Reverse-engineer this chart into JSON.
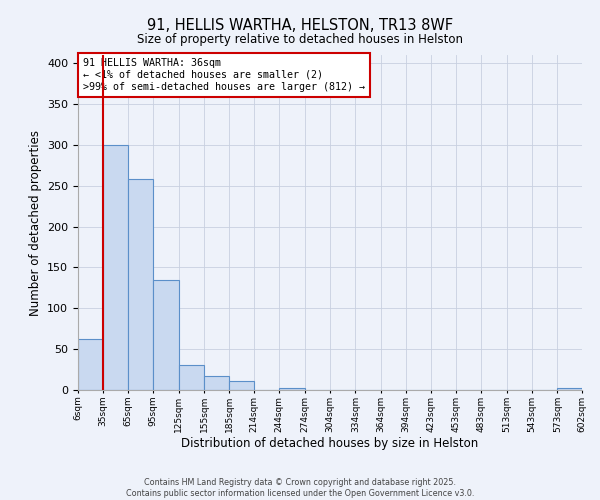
{
  "title": "91, HELLIS WARTHA, HELSTON, TR13 8WF",
  "subtitle": "Size of property relative to detached houses in Helston",
  "xlabel": "Distribution of detached houses by size in Helston",
  "ylabel": "Number of detached properties",
  "bin_labels": [
    "6sqm",
    "35sqm",
    "65sqm",
    "95sqm",
    "125sqm",
    "155sqm",
    "185sqm",
    "214sqm",
    "244sqm",
    "274sqm",
    "304sqm",
    "334sqm",
    "364sqm",
    "394sqm",
    "423sqm",
    "453sqm",
    "483sqm",
    "513sqm",
    "543sqm",
    "573sqm",
    "602sqm"
  ],
  "bar_values": [
    63,
    300,
    258,
    135,
    30,
    17,
    11,
    0,
    3,
    0,
    0,
    0,
    0,
    0,
    0,
    0,
    0,
    0,
    0,
    2
  ],
  "bar_color": "#c9d9f0",
  "bar_edgecolor": "#5b8fc9",
  "ylim": [
    0,
    410
  ],
  "yticks": [
    0,
    50,
    100,
    150,
    200,
    250,
    300,
    350,
    400
  ],
  "vline_x": 35,
  "vline_color": "#cc0000",
  "annotation_title": "91 HELLIS WARTHA: 36sqm",
  "annotation_line1": "← <1% of detached houses are smaller (2)",
  "annotation_line2": ">99% of semi-detached houses are larger (812) →",
  "annotation_box_color": "#cc0000",
  "footnote1": "Contains HM Land Registry data © Crown copyright and database right 2025.",
  "footnote2": "Contains public sector information licensed under the Open Government Licence v3.0.",
  "background_color": "#eef2fa",
  "grid_color": "#c8d0e0"
}
